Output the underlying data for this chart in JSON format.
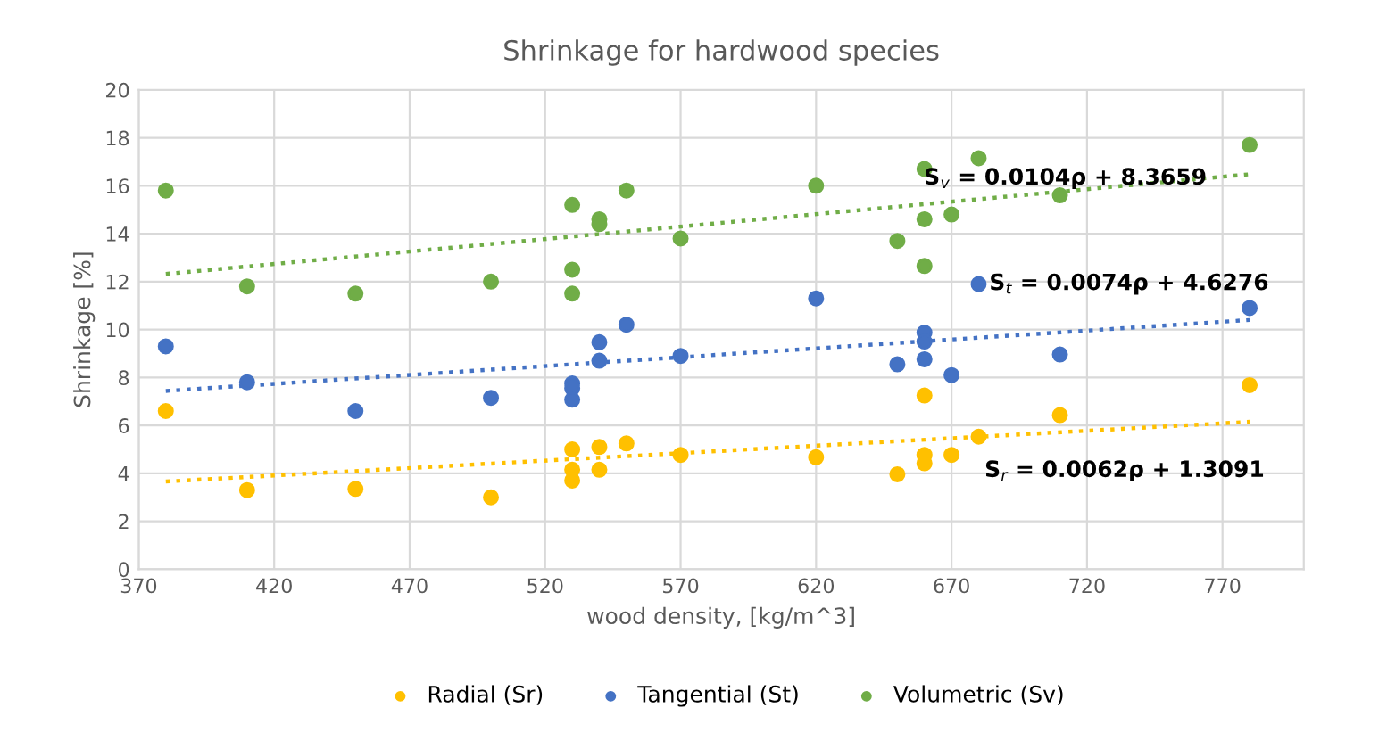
{
  "chart_data": {
    "type": "scatter",
    "title": "Shrinkage for hardwood species",
    "xlabel": "wood density, [kg/m^3]",
    "ylabel": "Shrinkage [%]",
    "xlim": [
      370,
      800
    ],
    "xticks": [
      370,
      420,
      470,
      520,
      570,
      620,
      670,
      720,
      770
    ],
    "ylim": [
      0,
      20
    ],
    "yticks": [
      0,
      2,
      4,
      6,
      8,
      10,
      12,
      14,
      16,
      18,
      20
    ],
    "grid": true,
    "legend": "bottom",
    "marker": "circle",
    "series": [
      {
        "name": "Radial (Sr)",
        "color": "#ffc000",
        "x": [
          380,
          410,
          450,
          500,
          530,
          530,
          530,
          540,
          540,
          550,
          570,
          620,
          650,
          660,
          660,
          660,
          670,
          680,
          710,
          780
        ],
        "values": [
          6.6,
          3.3,
          3.35,
          3.0,
          5.0,
          4.15,
          3.7,
          5.1,
          4.15,
          5.25,
          4.77,
          4.67,
          3.96,
          7.25,
          4.77,
          4.42,
          4.77,
          5.53,
          6.43,
          7.68
        ]
      },
      {
        "name": "Tangential (St)",
        "color": "#4472c4",
        "x": [
          380,
          410,
          450,
          500,
          530,
          530,
          530,
          540,
          540,
          550,
          570,
          620,
          650,
          660,
          660,
          660,
          670,
          680,
          710,
          780
        ],
        "values": [
          9.3,
          7.8,
          6.6,
          7.15,
          7.75,
          7.55,
          7.07,
          9.47,
          8.7,
          10.2,
          8.9,
          11.3,
          8.55,
          9.87,
          9.5,
          8.76,
          8.1,
          11.9,
          8.96,
          10.9
        ]
      },
      {
        "name": "Volumetric (Sv)",
        "color": "#70ad47",
        "x": [
          380,
          410,
          450,
          500,
          530,
          530,
          530,
          540,
          540,
          550,
          570,
          620,
          650,
          660,
          660,
          660,
          670,
          680,
          710,
          780
        ],
        "values": [
          15.8,
          11.8,
          11.5,
          12.0,
          15.2,
          12.5,
          11.5,
          14.6,
          14.4,
          15.8,
          13.8,
          16.0,
          13.7,
          16.7,
          14.6,
          12.65,
          14.8,
          17.15,
          15.6,
          17.7
        ]
      },
      {
        "type": "line",
        "line_style": "dotted",
        "marker": "none",
        "color": "#ffc000",
        "x": [
          380,
          780
        ],
        "values": [
          3.66,
          6.15
        ]
      },
      {
        "type": "line",
        "line_style": "dotted",
        "marker": "none",
        "color": "#4472c4",
        "x": [
          380,
          780
        ],
        "values": [
          7.44,
          10.4
        ]
      },
      {
        "type": "line",
        "line_style": "dotted",
        "marker": "none",
        "color": "#70ad47",
        "x": [
          380,
          780
        ],
        "values": [
          12.32,
          16.48
        ]
      }
    ],
    "annotations": [
      "S$_{v}$ = 0.0104ρ + 8.3659",
      "S$_{t}$ = 0.0074ρ + 4.6276",
      "S$_{r}$ = 0.0062ρ + 1.3091"
    ]
  }
}
